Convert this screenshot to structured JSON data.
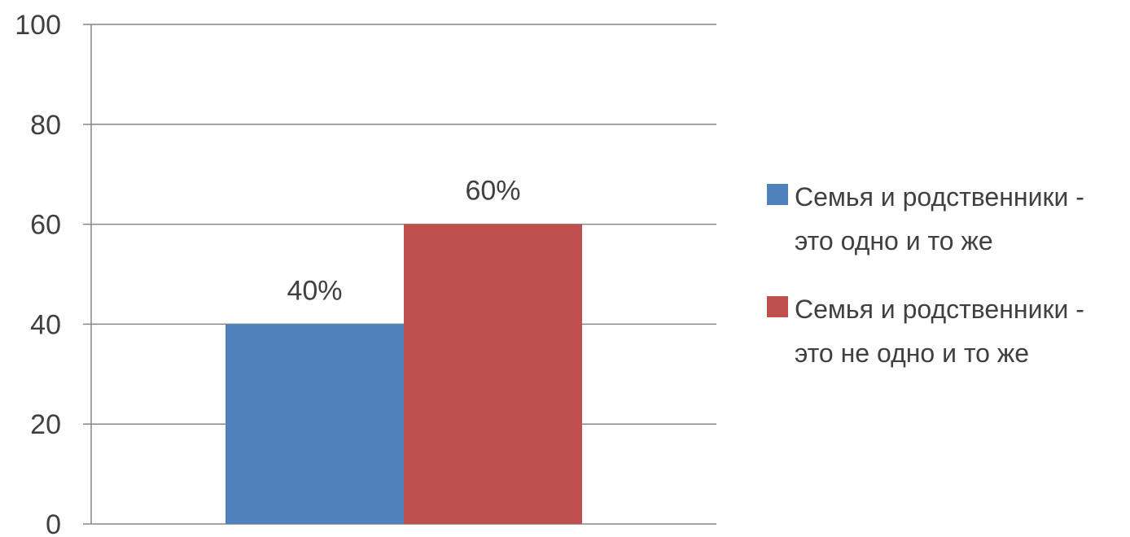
{
  "chart_data": {
    "type": "bar",
    "categories": [
      ""
    ],
    "series": [
      {
        "name": "Семья и родственники - это одно и то же",
        "name_lines": [
          "Семья и родственники -",
          "это одно и то же"
        ],
        "values": [
          40
        ],
        "data_label": "40%",
        "color": "#4F81BD"
      },
      {
        "name": "Семья и родственники - это не одно и то же",
        "name_lines": [
          "Семья и родственники -",
          "это не одно и то же"
        ],
        "values": [
          60
        ],
        "data_label": "60%",
        "color": "#C0504D"
      }
    ],
    "y_ticks": [
      "0",
      "20",
      "40",
      "60",
      "80",
      "100"
    ],
    "ylim": [
      0,
      100
    ],
    "grid": true,
    "legend_position": "right",
    "title": "",
    "xlabel": "",
    "ylabel": ""
  }
}
